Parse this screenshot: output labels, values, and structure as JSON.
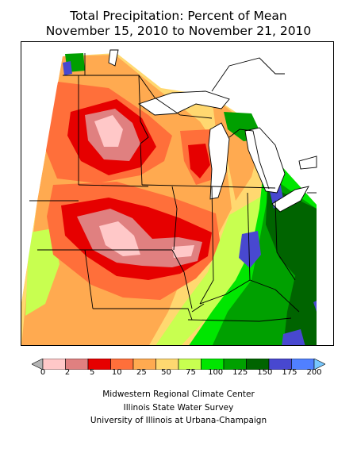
{
  "title": {
    "line1": "Total Precipitation: Percent of Mean",
    "line2": "November 15, 2010 to November 21, 2010"
  },
  "legend": {
    "ticks": [
      "0",
      "2",
      "5",
      "10",
      "25",
      "50",
      "75",
      "100",
      "125",
      "150",
      "175",
      "200"
    ],
    "colors": [
      "#b4b4b4",
      "#ffc8c8",
      "#e08080",
      "#e60000",
      "#ff6f3a",
      "#ffaa50",
      "#ffd870",
      "#c8ff50",
      "#00e600",
      "#00a000",
      "#006400",
      "#4848d0",
      "#5080ff",
      "#78c8ff"
    ]
  },
  "map": {
    "region": "Midwest",
    "colors": {
      "dark_red": "#e60000",
      "pink": "#e08080",
      "light_pink": "#ffc8c8",
      "red_orange": "#ff6f3a",
      "orange": "#ffaa50",
      "yellow_orange": "#ffd870",
      "yellow_green": "#c8ff50",
      "bright_green": "#00e600",
      "mid_green": "#00a000",
      "dark_green": "#006400",
      "blue": "#4848d0"
    }
  },
  "credits": {
    "line1": "Midwestern Regional Climate Center",
    "line2": "Illinois State Water Survey",
    "line3": "University of Illinois at Urbana-Champaign"
  }
}
